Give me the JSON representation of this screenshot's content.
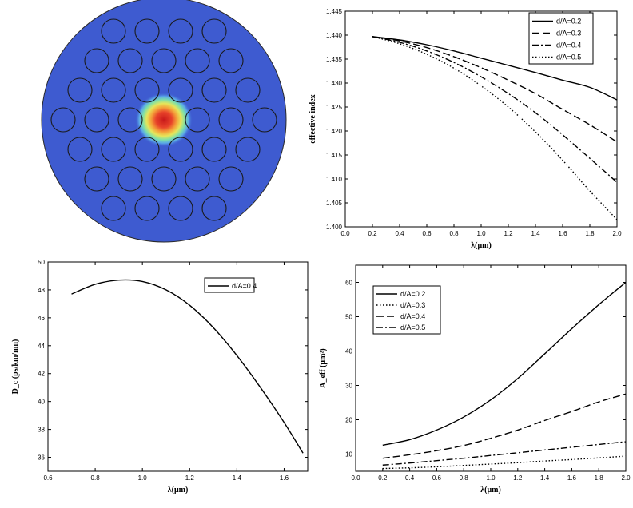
{
  "fiber_image": {
    "description_label": "PCF mode field",
    "colors": {
      "background": "#3e5bd0",
      "core_hot": "#d42a1c",
      "hole_stroke": "#1a1a1a"
    }
  },
  "chart_data": [
    {
      "id": "effective-index",
      "type": "line",
      "title": "",
      "xlabel": "λ(μm)",
      "ylabel": "effective index",
      "xlim": [
        0.0,
        2.0
      ],
      "ylim": [
        1.4,
        1.445
      ],
      "xticks": [
        "0.0",
        "0.2",
        "0.4",
        "0.6",
        "0.8",
        "1.0",
        "1.2",
        "1.4",
        "1.6",
        "1.8",
        "2.0"
      ],
      "yticks": [
        "1.400",
        "1.405",
        "1.410",
        "1.415",
        "1.420",
        "1.425",
        "1.430",
        "1.435",
        "1.440",
        "1.445"
      ],
      "legend_position": "top-right",
      "x": [
        0.2,
        0.4,
        0.6,
        0.8,
        1.0,
        1.2,
        1.4,
        1.6,
        1.8,
        2.0
      ],
      "series": [
        {
          "name": "d/A=0.2",
          "dash": "solid",
          "values": [
            1.4397,
            1.439,
            1.438,
            1.4367,
            1.4352,
            1.4337,
            1.4322,
            1.4306,
            1.4291,
            1.4265
          ]
        },
        {
          "name": "d/A=0.3",
          "dash": "dash",
          "values": [
            1.4397,
            1.4388,
            1.4374,
            1.4355,
            1.4332,
            1.4306,
            1.4278,
            1.4245,
            1.4213,
            1.4177
          ]
        },
        {
          "name": "d/A=0.4",
          "dash": "dashdot",
          "values": [
            1.4397,
            1.4385,
            1.4367,
            1.4343,
            1.4313,
            1.4278,
            1.4238,
            1.4192,
            1.4143,
            1.4093
          ]
        },
        {
          "name": "d/A=0.5",
          "dash": "dot",
          "values": [
            1.4397,
            1.4382,
            1.436,
            1.4331,
            1.4294,
            1.425,
            1.4198,
            1.4139,
            1.4075,
            1.4015
          ]
        }
      ]
    },
    {
      "id": "dispersion",
      "type": "line",
      "title": "",
      "xlabel": "λ(μm)",
      "ylabel": "D_c (ps/km/nm)",
      "xlim": [
        0.6,
        1.7
      ],
      "ylim": [
        35,
        50
      ],
      "xticks": [
        "0.6",
        "0.8",
        "1.0",
        "1.2",
        "1.4",
        "1.6"
      ],
      "yticks": [
        "36",
        "38",
        "40",
        "42",
        "44",
        "46",
        "48",
        "50"
      ],
      "legend_position": "top-right",
      "x": [
        0.7,
        0.8,
        0.9,
        1.0,
        1.1,
        1.2,
        1.3,
        1.4,
        1.5,
        1.6,
        1.68
      ],
      "series": [
        {
          "name": "d/A=0.4",
          "dash": "solid",
          "values": [
            47.7,
            48.4,
            48.7,
            48.6,
            48.0,
            46.9,
            45.3,
            43.3,
            41.0,
            38.5,
            36.3
          ]
        }
      ]
    },
    {
      "id": "effective-area",
      "type": "line",
      "title": "",
      "xlabel": "λ(μm)",
      "ylabel": "A_eff (μm²)",
      "xlim": [
        0.0,
        2.0
      ],
      "ylim": [
        5,
        65
      ],
      "xticks": [
        "0.0",
        "0.2",
        "0.4",
        "0.6",
        "0.8",
        "1.0",
        "1.2",
        "1.4",
        "1.6",
        "1.8",
        "2.0"
      ],
      "yticks": [
        "10",
        "20",
        "30",
        "40",
        "50",
        "60"
      ],
      "legend_position": "top-left",
      "x": [
        0.2,
        0.4,
        0.6,
        0.8,
        1.0,
        1.2,
        1.4,
        1.6,
        1.8,
        2.0
      ],
      "series": [
        {
          "name": "d/A=0.2",
          "dash": "solid",
          "values": [
            12.6,
            14.2,
            17.0,
            20.8,
            25.8,
            32.0,
            39.2,
            46.5,
            53.5,
            60.0
          ]
        },
        {
          "name": "d/A=0.3",
          "dash": "dot",
          "values": [
            5.8,
            6.0,
            6.3,
            6.7,
            7.1,
            7.5,
            8.0,
            8.4,
            8.9,
            9.4
          ]
        },
        {
          "name": "d/A=0.4",
          "dash": "dash",
          "values": [
            8.8,
            9.8,
            11.0,
            12.5,
            14.6,
            17.0,
            19.8,
            22.4,
            25.2,
            27.5
          ]
        },
        {
          "name": "d/A=0.5",
          "dash": "dashdot",
          "values": [
            6.8,
            7.4,
            8.1,
            8.8,
            9.6,
            10.4,
            11.2,
            12.0,
            12.8,
            13.6
          ]
        }
      ]
    }
  ]
}
